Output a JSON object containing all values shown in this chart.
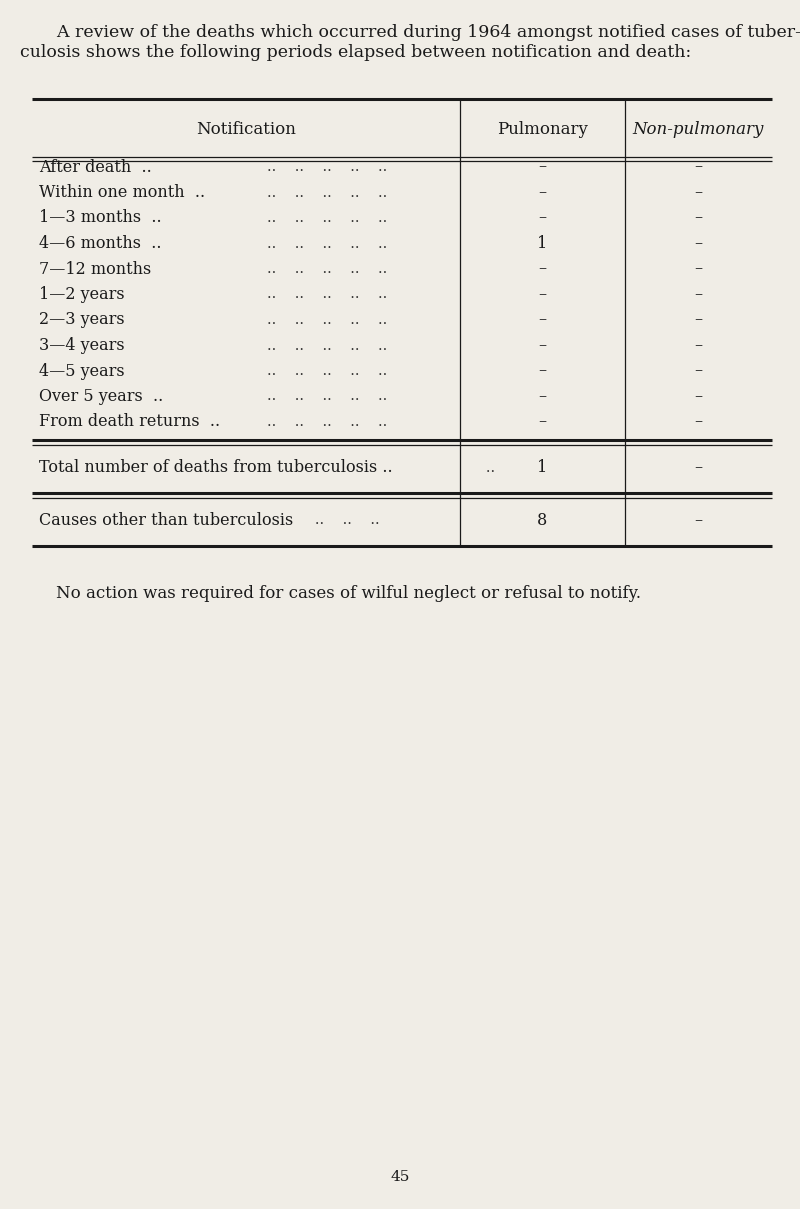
{
  "title_line1": "    A review of the deaths which occurred during 1964 amongst notified cases of tuber-",
  "title_line2": "culosis shows the following periods elapsed between notification and death:",
  "col_header_notif": "Notification",
  "col_header_pulm": "Pulmonary",
  "col_header_nonpulm": "Non-pulmonary",
  "row_labels": [
    "After death  ..",
    "Within one month  ..",
    "1—3 months  ..",
    "4—6 months  ..",
    "7—12 months",
    "1—2 years",
    "2—3 years",
    "3—4 years",
    "4—5 years",
    "Over 5 years  ..",
    "From death returns  .."
  ],
  "row_dots": [
    "..    ..    ..    ..    ..",
    "..    ..    ..    ..    ..",
    "..    ..    ..    ..    ..",
    "..    ..    ..    ..    ..",
    "..    ..    ..    ..    ..",
    "..    ..    ..    ..    ..",
    "..    ..    ..    ..    ..",
    "..    ..    ..    ..    ..",
    "..    ..    ..    ..    ..",
    "..    ..    ..    ..    ..",
    "..    ..    ..    ..    .."
  ],
  "pulm_vals": [
    "–",
    "–",
    "–",
    "1",
    "–",
    "–",
    "–",
    "–",
    "–",
    "–",
    "–"
  ],
  "nonpulm_vals": [
    "–",
    "–",
    "–",
    "–",
    "–",
    "–",
    "–",
    "–",
    "–",
    "–",
    "–"
  ],
  "total_label": "Total number of deaths from tuberculosis ..",
  "total_dots": "   ..",
  "total_pulm": "1",
  "total_nonpulm": "–",
  "causes_label": "Causes other than tuberculosis",
  "causes_dots": "   ..    ..    ..",
  "causes_pulm": "8",
  "causes_nonpulm": "–",
  "footnote": "    No action was required for cases of wilful neglect or refusal to notify.",
  "page_number": "45",
  "bg_color": "#f0ede6",
  "text_color": "#1a1a1a",
  "title_fontsize": 12.5,
  "header_fontsize": 12,
  "row_fontsize": 11.5,
  "footnote_fontsize": 12
}
